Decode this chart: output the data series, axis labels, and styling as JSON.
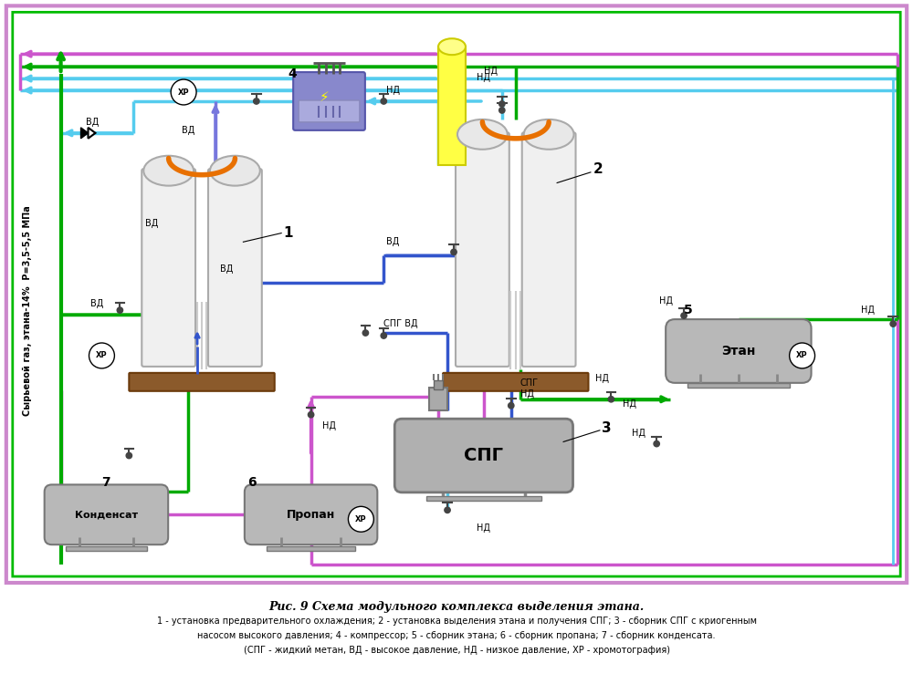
{
  "title": "Рис. 9 Схема модульного комплекса выделения этана.",
  "caption_line1": "1 - установка предварительного охлаждения; 2 - установка выделения этана и получения СПГ; 3 - сборник СПГ с криогенным",
  "caption_line2": "насосом высокого давления; 4 - компрессор; 5 - сборник этана; 6 - сборник пропана; 7 - сборник конденсата.",
  "caption_line3": "(СПГ - жидкий метан, ВД - высокое давление, НД - низкое давление, ХР - хромотография)",
  "ylabel": "Сырьевой газ, этана-14%  P=3,5-5,5 МПа",
  "bg_color": "#ffffff",
  "border_color_outer": "#cc88cc",
  "border_color_inner": "#00bb00",
  "green": "#00aa00",
  "cyan": "#55ccee",
  "blue": "#3355cc",
  "purple": "#cc55cc",
  "violet": "#7777dd"
}
